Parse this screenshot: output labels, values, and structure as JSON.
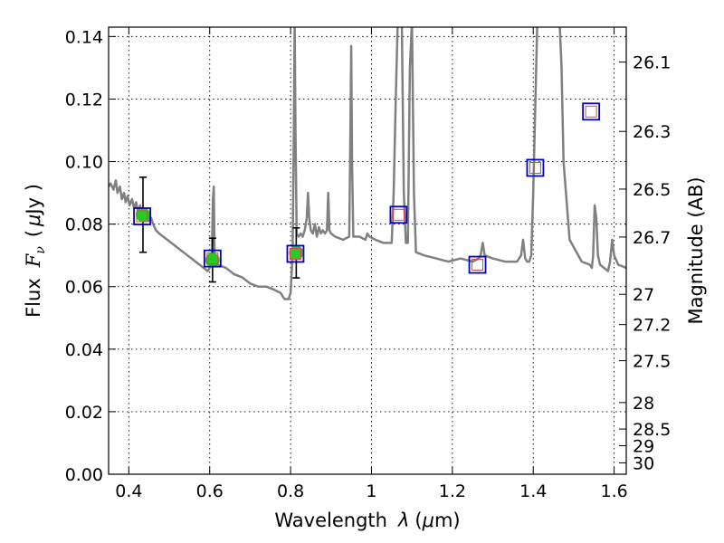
{
  "chart_data": {
    "type": "line",
    "xlabel_prefix": "Wavelength",
    "xlabel_symbol": "λ",
    "xlabel_unit_open": "(",
    "xlabel_mu": "μ",
    "xlabel_unit_rest": "m)",
    "ylabel_prefix": "Flux",
    "ylabel_symbol": "F",
    "ylabel_sub": "ν",
    "ylabel_unit_open": "(",
    "ylabel_mu": "μ",
    "ylabel_unit_rest": "Jy )",
    "y2label": "Magnitude (AB)",
    "xlim": [
      0.35,
      1.63
    ],
    "ylim": [
      0.0,
      0.143
    ],
    "grid": true,
    "x_ticks": [
      {
        "value": 0.4,
        "label": "0.4"
      },
      {
        "value": 0.6,
        "label": "0.6"
      },
      {
        "value": 0.8,
        "label": "0.8"
      },
      {
        "value": 1.0,
        "label": "1"
      },
      {
        "value": 1.2,
        "label": "1.2"
      },
      {
        "value": 1.4,
        "label": "1.4"
      },
      {
        "value": 1.6,
        "label": "1.6"
      }
    ],
    "y_ticks": [
      {
        "value": 0.0,
        "label": "0.00"
      },
      {
        "value": 0.02,
        "label": "0.02"
      },
      {
        "value": 0.04,
        "label": "0.04"
      },
      {
        "value": 0.06,
        "label": "0.06"
      },
      {
        "value": 0.08,
        "label": "0.08"
      },
      {
        "value": 0.1,
        "label": "0.10"
      },
      {
        "value": 0.12,
        "label": "0.12"
      },
      {
        "value": 0.14,
        "label": "0.14"
      }
    ],
    "y2_ticks": [
      {
        "mag": 26.1,
        "label": "26.1"
      },
      {
        "mag": 26.3,
        "label": "26.3"
      },
      {
        "mag": 26.5,
        "label": "26.5"
      },
      {
        "mag": 26.7,
        "label": "26.7"
      },
      {
        "mag": 27.0,
        "label": "27"
      },
      {
        "mag": 27.2,
        "label": "27.2"
      },
      {
        "mag": 27.5,
        "label": "27.5"
      },
      {
        "mag": 28.0,
        "label": "28"
      },
      {
        "mag": 28.5,
        "label": "28.5"
      },
      {
        "mag": 29.0,
        "label": "29"
      },
      {
        "mag": 30.0,
        "label": "30"
      }
    ],
    "colors": {
      "spectrum": "#808080",
      "photometry": "#22cc22",
      "model_box": "#0000cc",
      "model_inner": "#dd4444",
      "errorbar": "#000000"
    },
    "spectrum": {
      "x": [
        0.35,
        0.355,
        0.362,
        0.368,
        0.372,
        0.378,
        0.383,
        0.388,
        0.392,
        0.397,
        0.402,
        0.408,
        0.413,
        0.418,
        0.423,
        0.428,
        0.432,
        0.436,
        0.44,
        0.445,
        0.45,
        0.455,
        0.46,
        0.467,
        0.475,
        0.485,
        0.495,
        0.505,
        0.515,
        0.525,
        0.535,
        0.545,
        0.555,
        0.565,
        0.575,
        0.585,
        0.595,
        0.6,
        0.605,
        0.608,
        0.61,
        0.612,
        0.614,
        0.62,
        0.64,
        0.66,
        0.68,
        0.7,
        0.72,
        0.74,
        0.76,
        0.775,
        0.785,
        0.795,
        0.8,
        0.805,
        0.808,
        0.81,
        0.812,
        0.815,
        0.82,
        0.825,
        0.83,
        0.835,
        0.84,
        0.843,
        0.846,
        0.85,
        0.855,
        0.86,
        0.865,
        0.87,
        0.875,
        0.88,
        0.885,
        0.89,
        0.893,
        0.896,
        0.9,
        0.91,
        0.93,
        0.945,
        0.948,
        0.95,
        0.952,
        0.955,
        0.97,
        0.985,
        0.99,
        0.995,
        1.01,
        1.03,
        1.05,
        1.055,
        1.06,
        1.065,
        1.07,
        1.075,
        1.08,
        1.085,
        1.09,
        1.095,
        1.1,
        1.105,
        1.11,
        1.13,
        1.16,
        1.19,
        1.22,
        1.25,
        1.265,
        1.27,
        1.275,
        1.28,
        1.3,
        1.33,
        1.36,
        1.37,
        1.375,
        1.38,
        1.385,
        1.39,
        1.395,
        1.4,
        1.41,
        1.42,
        1.43,
        1.44,
        1.45,
        1.46,
        1.465,
        1.47,
        1.475,
        1.49,
        1.52,
        1.54,
        1.545,
        1.548,
        1.552,
        1.556,
        1.56,
        1.565,
        1.575,
        1.585,
        1.59,
        1.595,
        1.6,
        1.61,
        1.63
      ],
      "y": [
        0.092,
        0.093,
        0.091,
        0.094,
        0.09,
        0.092,
        0.088,
        0.09,
        0.087,
        0.089,
        0.086,
        0.088,
        0.085,
        0.087,
        0.084,
        0.086,
        0.083,
        0.085,
        0.082,
        0.084,
        0.081,
        0.082,
        0.08,
        0.078,
        0.077,
        0.076,
        0.075,
        0.074,
        0.073,
        0.072,
        0.071,
        0.07,
        0.069,
        0.068,
        0.067,
        0.066,
        0.065,
        0.066,
        0.07,
        0.088,
        0.092,
        0.07,
        0.068,
        0.067,
        0.066,
        0.064,
        0.063,
        0.061,
        0.06,
        0.06,
        0.059,
        0.058,
        0.056,
        0.056,
        0.058,
        0.07,
        0.11,
        0.145,
        0.11,
        0.077,
        0.076,
        0.077,
        0.076,
        0.078,
        0.082,
        0.09,
        0.082,
        0.078,
        0.077,
        0.08,
        0.076,
        0.079,
        0.077,
        0.078,
        0.077,
        0.078,
        0.09,
        0.078,
        0.077,
        0.076,
        0.075,
        0.076,
        0.11,
        0.137,
        0.1,
        0.076,
        0.076,
        0.075,
        0.077,
        0.076,
        0.075,
        0.074,
        0.074,
        0.09,
        0.12,
        0.145,
        0.145,
        0.145,
        0.09,
        0.074,
        0.074,
        0.13,
        0.145,
        0.09,
        0.071,
        0.07,
        0.069,
        0.068,
        0.069,
        0.068,
        0.069,
        0.07,
        0.074,
        0.07,
        0.069,
        0.068,
        0.068,
        0.07,
        0.075,
        0.069,
        0.068,
        0.068,
        0.07,
        0.09,
        0.145,
        0.145,
        0.145,
        0.145,
        0.145,
        0.145,
        0.145,
        0.13,
        0.1,
        0.075,
        0.068,
        0.067,
        0.066,
        0.07,
        0.086,
        0.082,
        0.07,
        0.067,
        0.066,
        0.065,
        0.068,
        0.075,
        0.07,
        0.067,
        0.066
      ]
    },
    "photometry": [
      {
        "x": 0.435,
        "y": 0.083,
        "yerr": 0.012
      },
      {
        "x": 0.607,
        "y": 0.0685,
        "yerr": 0.007
      },
      {
        "x": 0.814,
        "y": 0.0708,
        "yerr": 0.008
      }
    ],
    "model_points": [
      {
        "x": 0.433,
        "y": 0.0825
      },
      {
        "x": 0.607,
        "y": 0.069
      },
      {
        "x": 0.812,
        "y": 0.0705
      },
      {
        "x": 1.067,
        "y": 0.083
      },
      {
        "x": 1.262,
        "y": 0.067
      },
      {
        "x": 1.405,
        "y": 0.098
      },
      {
        "x": 1.543,
        "y": 0.116
      }
    ]
  }
}
